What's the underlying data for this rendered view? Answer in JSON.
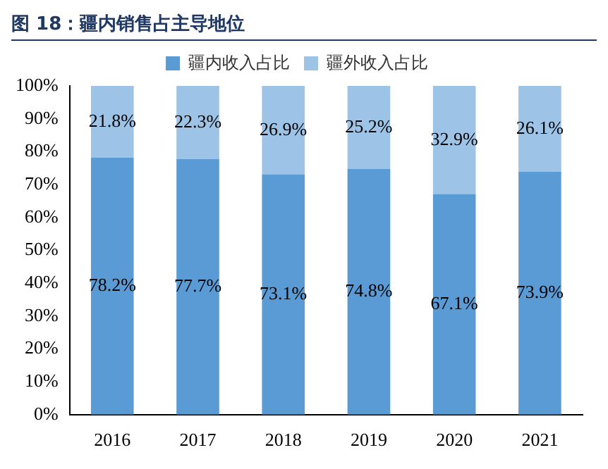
{
  "chart_data": {
    "type": "bar",
    "title": "图 18：疆内销售占主导地位",
    "categories": [
      "2016",
      "2017",
      "2018",
      "2019",
      "2020",
      "2021"
    ],
    "series": [
      {
        "name": "疆内收入占比",
        "color": "#5b9bd5",
        "values": [
          78.2,
          77.7,
          73.1,
          74.8,
          67.1,
          73.9
        ],
        "value_labels": [
          "78.2%",
          "77.7%",
          "73.1%",
          "74.8%",
          "67.1%",
          "73.9%"
        ]
      },
      {
        "name": "疆外收入占比",
        "color": "#9dc3e6",
        "values": [
          21.8,
          22.3,
          26.9,
          25.2,
          32.9,
          26.1
        ],
        "value_labels": [
          "21.8%",
          "22.3%",
          "26.9%",
          "25.2%",
          "32.9%",
          "26.1%"
        ]
      }
    ],
    "stacked": true,
    "ylim": [
      0,
      100
    ],
    "yticks": [
      {
        "value": 0,
        "label": "0%"
      },
      {
        "value": 10,
        "label": "10%"
      },
      {
        "value": 20,
        "label": "20%"
      },
      {
        "value": 30,
        "label": "30%"
      },
      {
        "value": 40,
        "label": "40%"
      },
      {
        "value": 50,
        "label": "50%"
      },
      {
        "value": 60,
        "label": "60%"
      },
      {
        "value": 70,
        "label": "70%"
      },
      {
        "value": 80,
        "label": "80%"
      },
      {
        "value": 90,
        "label": "90%"
      },
      {
        "value": 100,
        "label": "100%"
      }
    ],
    "grid": false,
    "legend": "top"
  }
}
